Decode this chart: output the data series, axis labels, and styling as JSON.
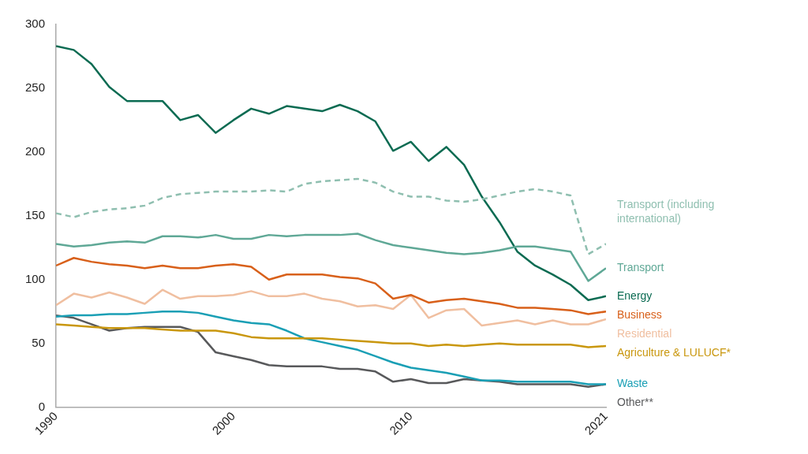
{
  "chart_data": {
    "type": "line",
    "x": [
      1990,
      1991,
      1992,
      1993,
      1994,
      1995,
      1996,
      1997,
      1998,
      1999,
      2000,
      2001,
      2002,
      2003,
      2004,
      2005,
      2006,
      2007,
      2008,
      2009,
      2010,
      2011,
      2012,
      2013,
      2014,
      2015,
      2016,
      2017,
      2018,
      2019,
      2020,
      2021
    ],
    "xlim": [
      1990,
      2021
    ],
    "xticks": [
      1990,
      2000,
      2010,
      2021
    ],
    "ylim": [
      0,
      300
    ],
    "yticks": [
      0,
      50,
      100,
      150,
      200,
      250,
      300
    ],
    "grid": false,
    "legend": false,
    "marker": "none",
    "series": [
      {
        "name": "Transport (including international)",
        "color": "#8fbfb0",
        "line_style": "dashed",
        "values": [
          152,
          149,
          153,
          155,
          156,
          158,
          164,
          167,
          168,
          169,
          169,
          169,
          170,
          169,
          175,
          177,
          178,
          179,
          176,
          169,
          165,
          165,
          162,
          161,
          163,
          166,
          169,
          171,
          169,
          166,
          120,
          128
        ]
      },
      {
        "name": "Transport",
        "color": "#5fa896",
        "values": [
          128,
          126,
          127,
          129,
          130,
          129,
          134,
          134,
          133,
          135,
          132,
          132,
          135,
          134,
          135,
          135,
          135,
          136,
          131,
          127,
          125,
          123,
          121,
          120,
          121,
          123,
          126,
          126,
          124,
          122,
          99,
          109
        ]
      },
      {
        "name": "Energy",
        "color": "#0b6b52",
        "values": [
          283,
          280,
          269,
          251,
          240,
          240,
          240,
          225,
          229,
          215,
          225,
          234,
          230,
          236,
          234,
          232,
          237,
          232,
          224,
          201,
          208,
          193,
          204,
          190,
          165,
          145,
          122,
          111,
          104,
          96,
          84,
          87
        ]
      },
      {
        "name": "Business",
        "color": "#d8601a",
        "values": [
          111,
          117,
          114,
          112,
          111,
          109,
          111,
          109,
          109,
          111,
          112,
          110,
          100,
          104,
          104,
          104,
          102,
          101,
          97,
          85,
          88,
          82,
          84,
          85,
          83,
          81,
          78,
          78,
          77,
          76,
          73,
          75
        ]
      },
      {
        "name": "Residential",
        "color": "#f0bfa0",
        "values": [
          80,
          89,
          86,
          90,
          86,
          81,
          92,
          85,
          87,
          87,
          88,
          91,
          87,
          87,
          89,
          85,
          83,
          79,
          80,
          77,
          88,
          70,
          76,
          77,
          64,
          66,
          68,
          65,
          68,
          65,
          65,
          69
        ]
      },
      {
        "name": "Agriculture & LULUCF*",
        "color": "#c9970e",
        "values": [
          65,
          64,
          63,
          62,
          62,
          62,
          61,
          60,
          60,
          60,
          58,
          55,
          54,
          54,
          54,
          54,
          53,
          52,
          51,
          50,
          50,
          48,
          49,
          48,
          49,
          50,
          49,
          49,
          49,
          49,
          47,
          48
        ]
      },
      {
        "name": "Waste",
        "color": "#1a9fb5",
        "values": [
          71,
          72,
          72,
          73,
          73,
          74,
          75,
          75,
          74,
          71,
          68,
          66,
          65,
          60,
          54,
          51,
          48,
          45,
          40,
          35,
          31,
          29,
          27,
          24,
          21,
          21,
          20,
          20,
          20,
          20,
          18,
          18
        ]
      },
      {
        "name": "Other**",
        "color": "#58595b",
        "values": [
          72,
          70,
          65,
          60,
          62,
          63,
          63,
          63,
          59,
          43,
          40,
          37,
          33,
          32,
          32,
          32,
          30,
          30,
          28,
          20,
          22,
          19,
          19,
          22,
          21,
          20,
          18,
          18,
          18,
          18,
          16,
          18
        ]
      }
    ]
  }
}
